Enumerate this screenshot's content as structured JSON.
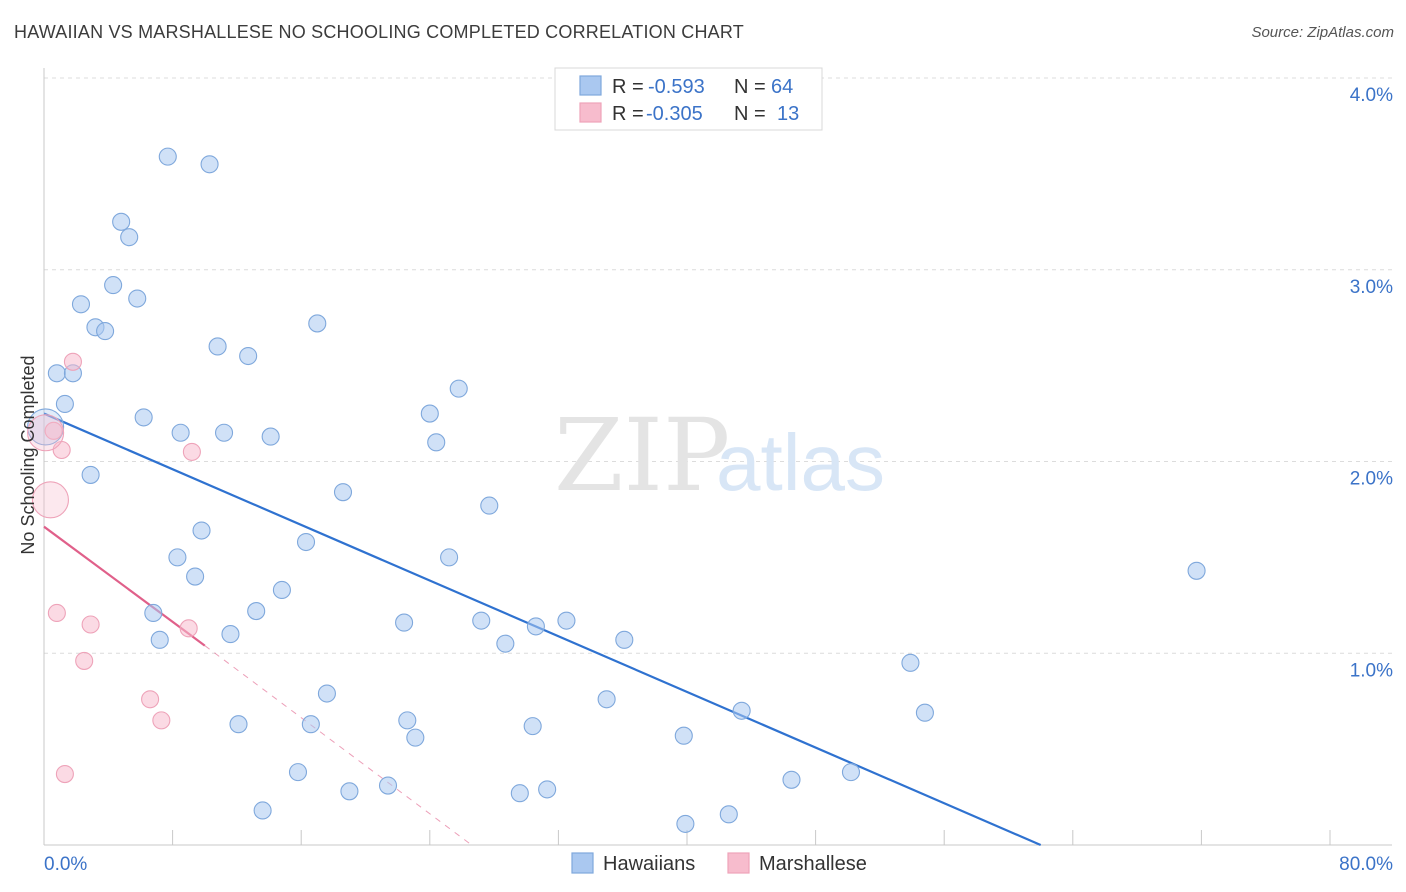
{
  "title": "HAWAIIAN VS MARSHALLESE NO SCHOOLING COMPLETED CORRELATION CHART",
  "source": "Source: ZipAtlas.com",
  "watermark": {
    "zip": "ZIP",
    "atlas": "atlas"
  },
  "legend_top": [
    {
      "r_label": "R =",
      "r_value": "-0.593",
      "n_label": "N =",
      "n_value": "64",
      "color": "#aac8f0"
    },
    {
      "r_label": "R =",
      "r_value": "-0.305",
      "n_label": "N =",
      "n_value": "13",
      "color": "#f7bccd"
    }
  ],
  "legend_bottom": [
    {
      "label": "Hawaiians",
      "color": "#aac8f0"
    },
    {
      "label": "Marshallese",
      "color": "#f7bccd"
    }
  ],
  "chart_data": {
    "type": "scatter",
    "title": "HAWAIIAN VS MARSHALLESE NO SCHOOLING COMPLETED CORRELATION CHART",
    "xlabel": "",
    "ylabel": "No Schooling Completed",
    "xlim": [
      0,
      80
    ],
    "ylim": [
      0,
      4.0
    ],
    "x_tick_labels": {
      "min": "0.0%",
      "max": "80.0%"
    },
    "y_ticks": [
      1.0,
      2.0,
      3.0,
      4.0
    ],
    "y_tick_labels": [
      "1.0%",
      "2.0%",
      "3.0%",
      "4.0%"
    ],
    "grid": true,
    "series": [
      {
        "name": "Hawaiians",
        "color": "#aac8f0",
        "stroke": "#7fa8dc",
        "trend_color": "#2f72d0",
        "trend": {
          "x0": 0.0,
          "y0": 2.25,
          "x1": 62.0,
          "y1": 0.0
        },
        "points": [
          [
            7.7,
            3.59
          ],
          [
            10.3,
            3.55
          ],
          [
            4.8,
            3.25
          ],
          [
            5.3,
            3.17
          ],
          [
            4.3,
            2.92
          ],
          [
            5.8,
            2.85
          ],
          [
            2.3,
            2.82
          ],
          [
            3.2,
            2.7
          ],
          [
            3.8,
            2.68
          ],
          [
            17.0,
            2.72
          ],
          [
            10.8,
            2.6
          ],
          [
            12.7,
            2.55
          ],
          [
            0.8,
            2.46
          ],
          [
            1.8,
            2.46
          ],
          [
            25.8,
            2.38
          ],
          [
            1.3,
            2.3
          ],
          [
            24.0,
            2.25
          ],
          [
            6.2,
            2.23
          ],
          [
            8.5,
            2.15
          ],
          [
            11.2,
            2.15
          ],
          [
            14.1,
            2.13
          ],
          [
            24.4,
            2.1
          ],
          [
            2.9,
            1.93
          ],
          [
            18.6,
            1.84
          ],
          [
            27.7,
            1.77
          ],
          [
            9.8,
            1.64
          ],
          [
            16.3,
            1.58
          ],
          [
            8.3,
            1.5
          ],
          [
            25.2,
            1.5
          ],
          [
            71.7,
            1.43
          ],
          [
            9.4,
            1.4
          ],
          [
            14.8,
            1.33
          ],
          [
            13.2,
            1.22
          ],
          [
            6.8,
            1.21
          ],
          [
            22.4,
            1.16
          ],
          [
            27.2,
            1.17
          ],
          [
            30.6,
            1.14
          ],
          [
            32.5,
            1.17
          ],
          [
            11.6,
            1.1
          ],
          [
            7.2,
            1.07
          ],
          [
            28.7,
            1.05
          ],
          [
            36.1,
            1.07
          ],
          [
            53.9,
            0.95
          ],
          [
            17.6,
            0.79
          ],
          [
            35.0,
            0.76
          ],
          [
            43.4,
            0.7
          ],
          [
            54.8,
            0.69
          ],
          [
            22.6,
            0.65
          ],
          [
            16.6,
            0.63
          ],
          [
            30.4,
            0.62
          ],
          [
            12.1,
            0.63
          ],
          [
            23.1,
            0.56
          ],
          [
            39.8,
            0.57
          ],
          [
            15.8,
            0.38
          ],
          [
            50.2,
            0.38
          ],
          [
            46.5,
            0.34
          ],
          [
            21.4,
            0.31
          ],
          [
            19.0,
            0.28
          ],
          [
            29.6,
            0.27
          ],
          [
            31.3,
            0.29
          ],
          [
            13.6,
            0.18
          ],
          [
            42.6,
            0.16
          ],
          [
            39.9,
            0.11
          ],
          [
            0.1,
            2.18
          ]
        ]
      },
      {
        "name": "Marshallese",
        "color": "#f7bccd",
        "stroke": "#eea3b9",
        "trend_color": "#e0608a",
        "trend": {
          "x0": 0.0,
          "y0": 1.66,
          "x1": 10.0,
          "y1": 1.04
        },
        "trend_ext": {
          "x0": 10.0,
          "y0": 1.04,
          "x1": 26.6,
          "y1": 0.0
        },
        "points": [
          [
            1.8,
            2.52
          ],
          [
            0.6,
            2.16
          ],
          [
            1.1,
            2.06
          ],
          [
            9.2,
            2.05
          ],
          [
            0.4,
            1.8
          ],
          [
            0.8,
            1.21
          ],
          [
            2.9,
            1.15
          ],
          [
            9.0,
            1.13
          ],
          [
            2.5,
            0.96
          ],
          [
            6.6,
            0.76
          ],
          [
            7.3,
            0.65
          ],
          [
            1.3,
            0.37
          ],
          [
            0.1,
            2.15
          ]
        ]
      }
    ]
  }
}
